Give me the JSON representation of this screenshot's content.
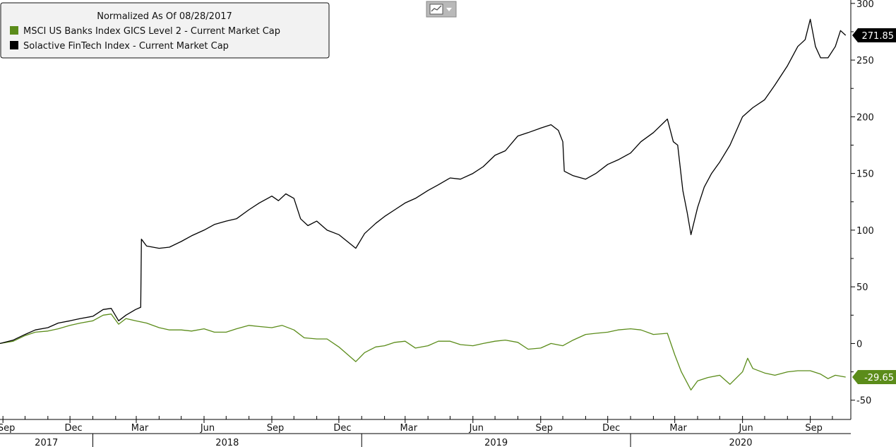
{
  "chart_data": {
    "type": "line",
    "legend_title": "Normalized As Of 08/28/2017",
    "legend_placement": "top-left",
    "y_axis_side": "right",
    "ylim": [
      -67,
      303
    ],
    "y_ticks": [
      -50,
      0,
      50,
      100,
      150,
      200,
      250,
      300
    ],
    "y_tick_labels": [
      "-50",
      "0",
      "50",
      "100",
      "150",
      "200",
      "250",
      "300"
    ],
    "x_range": [
      "2017-08-28",
      "2020-10-26"
    ],
    "x_tick_labels": [
      {
        "date": "2017-09-01",
        "label": "Sep"
      },
      {
        "date": "2017-12-01",
        "label": "Dec"
      },
      {
        "date": "2018-03-01",
        "label": "Mar"
      },
      {
        "date": "2018-06-01",
        "label": "Jun"
      },
      {
        "date": "2018-09-01",
        "label": "Sep"
      },
      {
        "date": "2018-12-01",
        "label": "Dec"
      },
      {
        "date": "2019-03-01",
        "label": "Mar"
      },
      {
        "date": "2019-06-01",
        "label": "Jun"
      },
      {
        "date": "2019-09-01",
        "label": "Sep"
      },
      {
        "date": "2019-12-01",
        "label": "Dec"
      },
      {
        "date": "2020-03-01",
        "label": "Mar"
      },
      {
        "date": "2020-06-01",
        "label": "Jun"
      },
      {
        "date": "2020-09-01",
        "label": "Sep"
      }
    ],
    "year_labels": [
      {
        "label": "2017",
        "from": "2017-08-28",
        "to": "2018-01-01"
      },
      {
        "label": "2018",
        "from": "2018-01-01",
        "to": "2019-01-01"
      },
      {
        "label": "2019",
        "from": "2019-01-01",
        "to": "2020-01-01"
      },
      {
        "label": "2020",
        "from": "2020-01-01",
        "to": "2020-10-26"
      }
    ],
    "series": [
      {
        "name": "Solactive FinTech Index - Current Market Cap",
        "color": "#000000",
        "last_value_label": "271.85",
        "points": [
          [
            "2017-08-28",
            0
          ],
          [
            "2017-09-15",
            3
          ],
          [
            "2017-10-01",
            8
          ],
          [
            "2017-10-15",
            12
          ],
          [
            "2017-11-01",
            14
          ],
          [
            "2017-11-15",
            18
          ],
          [
            "2017-12-01",
            20
          ],
          [
            "2017-12-15",
            22
          ],
          [
            "2018-01-01",
            24
          ],
          [
            "2018-01-15",
            30
          ],
          [
            "2018-01-26",
            31
          ],
          [
            "2018-02-05",
            20
          ],
          [
            "2018-02-15",
            25
          ],
          [
            "2018-02-28",
            30
          ],
          [
            "2018-03-07",
            32
          ],
          [
            "2018-03-08",
            92
          ],
          [
            "2018-03-15",
            86
          ],
          [
            "2018-04-01",
            84
          ],
          [
            "2018-04-15",
            85
          ],
          [
            "2018-05-01",
            90
          ],
          [
            "2018-05-15",
            95
          ],
          [
            "2018-06-01",
            100
          ],
          [
            "2018-06-15",
            105
          ],
          [
            "2018-07-01",
            108
          ],
          [
            "2018-07-15",
            110
          ],
          [
            "2018-08-01",
            118
          ],
          [
            "2018-08-15",
            124
          ],
          [
            "2018-09-01",
            130
          ],
          [
            "2018-09-10",
            126
          ],
          [
            "2018-09-20",
            132
          ],
          [
            "2018-10-01",
            128
          ],
          [
            "2018-10-10",
            110
          ],
          [
            "2018-10-20",
            104
          ],
          [
            "2018-11-01",
            108
          ],
          [
            "2018-11-15",
            100
          ],
          [
            "2018-12-01",
            96
          ],
          [
            "2018-12-24",
            84
          ],
          [
            "2019-01-05",
            97
          ],
          [
            "2019-01-20",
            106
          ],
          [
            "2019-02-01",
            112
          ],
          [
            "2019-02-15",
            118
          ],
          [
            "2019-03-01",
            124
          ],
          [
            "2019-03-15",
            128
          ],
          [
            "2019-04-01",
            135
          ],
          [
            "2019-04-15",
            140
          ],
          [
            "2019-05-01",
            146
          ],
          [
            "2019-05-15",
            145
          ],
          [
            "2019-06-01",
            150
          ],
          [
            "2019-06-15",
            156
          ],
          [
            "2019-07-01",
            166
          ],
          [
            "2019-07-15",
            170
          ],
          [
            "2019-08-01",
            183
          ],
          [
            "2019-08-15",
            186
          ],
          [
            "2019-09-01",
            190
          ],
          [
            "2019-09-15",
            193
          ],
          [
            "2019-09-25",
            188
          ],
          [
            "2019-10-01",
            178
          ],
          [
            "2019-10-03",
            152
          ],
          [
            "2019-10-15",
            148
          ],
          [
            "2019-11-01",
            145
          ],
          [
            "2019-11-15",
            150
          ],
          [
            "2019-12-01",
            158
          ],
          [
            "2019-12-15",
            162
          ],
          [
            "2020-01-01",
            168
          ],
          [
            "2020-01-15",
            178
          ],
          [
            "2020-02-01",
            186
          ],
          [
            "2020-02-20",
            198
          ],
          [
            "2020-02-28",
            178
          ],
          [
            "2020-03-05",
            175
          ],
          [
            "2020-03-12",
            135
          ],
          [
            "2020-03-18",
            115
          ],
          [
            "2020-03-23",
            96
          ],
          [
            "2020-04-01",
            120
          ],
          [
            "2020-04-10",
            138
          ],
          [
            "2020-04-20",
            150
          ],
          [
            "2020-05-01",
            160
          ],
          [
            "2020-05-15",
            175
          ],
          [
            "2020-06-01",
            200
          ],
          [
            "2020-06-15",
            208
          ],
          [
            "2020-07-01",
            215
          ],
          [
            "2020-07-15",
            228
          ],
          [
            "2020-08-01",
            245
          ],
          [
            "2020-08-15",
            262
          ],
          [
            "2020-08-25",
            268
          ],
          [
            "2020-09-01",
            286
          ],
          [
            "2020-09-08",
            262
          ],
          [
            "2020-09-15",
            252
          ],
          [
            "2020-09-25",
            252
          ],
          [
            "2020-10-05",
            262
          ],
          [
            "2020-10-12",
            276
          ],
          [
            "2020-10-19",
            271.85
          ]
        ]
      },
      {
        "name": "MSCI US Banks Index GICS Level 2 - Current Market Cap",
        "color": "#5b8c1a",
        "last_value_label": "-29.65",
        "points": [
          [
            "2017-08-28",
            0
          ],
          [
            "2017-09-15",
            2
          ],
          [
            "2017-10-01",
            7
          ],
          [
            "2017-10-15",
            10
          ],
          [
            "2017-11-01",
            11
          ],
          [
            "2017-11-15",
            13
          ],
          [
            "2017-12-01",
            16
          ],
          [
            "2017-12-15",
            18
          ],
          [
            "2018-01-01",
            20
          ],
          [
            "2018-01-15",
            25
          ],
          [
            "2018-01-26",
            26
          ],
          [
            "2018-02-05",
            17
          ],
          [
            "2018-02-15",
            22
          ],
          [
            "2018-02-28",
            20
          ],
          [
            "2018-03-15",
            18
          ],
          [
            "2018-04-01",
            14
          ],
          [
            "2018-04-15",
            12
          ],
          [
            "2018-05-01",
            12
          ],
          [
            "2018-05-15",
            11
          ],
          [
            "2018-06-01",
            13
          ],
          [
            "2018-06-15",
            10
          ],
          [
            "2018-07-01",
            10
          ],
          [
            "2018-07-15",
            13
          ],
          [
            "2018-08-01",
            16
          ],
          [
            "2018-08-15",
            15
          ],
          [
            "2018-09-01",
            14
          ],
          [
            "2018-09-15",
            16
          ],
          [
            "2018-10-01",
            12
          ],
          [
            "2018-10-15",
            5
          ],
          [
            "2018-11-01",
            4
          ],
          [
            "2018-11-15",
            4
          ],
          [
            "2018-12-01",
            -3
          ],
          [
            "2018-12-24",
            -16
          ],
          [
            "2019-01-05",
            -8
          ],
          [
            "2019-01-20",
            -3
          ],
          [
            "2019-02-01",
            -2
          ],
          [
            "2019-02-15",
            1
          ],
          [
            "2019-03-01",
            2
          ],
          [
            "2019-03-15",
            -4
          ],
          [
            "2019-04-01",
            -2
          ],
          [
            "2019-04-15",
            2
          ],
          [
            "2019-05-01",
            2
          ],
          [
            "2019-05-15",
            -1
          ],
          [
            "2019-06-01",
            -2
          ],
          [
            "2019-06-15",
            0
          ],
          [
            "2019-07-01",
            2
          ],
          [
            "2019-07-15",
            3
          ],
          [
            "2019-08-01",
            1
          ],
          [
            "2019-08-15",
            -5
          ],
          [
            "2019-09-01",
            -4
          ],
          [
            "2019-09-15",
            0
          ],
          [
            "2019-10-01",
            -2
          ],
          [
            "2019-10-15",
            3
          ],
          [
            "2019-11-01",
            8
          ],
          [
            "2019-11-15",
            9
          ],
          [
            "2019-12-01",
            10
          ],
          [
            "2019-12-15",
            12
          ],
          [
            "2020-01-01",
            13
          ],
          [
            "2020-01-15",
            12
          ],
          [
            "2020-02-01",
            8
          ],
          [
            "2020-02-20",
            9
          ],
          [
            "2020-03-01",
            -10
          ],
          [
            "2020-03-10",
            -25
          ],
          [
            "2020-03-23",
            -41
          ],
          [
            "2020-04-01",
            -33
          ],
          [
            "2020-04-15",
            -30
          ],
          [
            "2020-05-01",
            -28
          ],
          [
            "2020-05-15",
            -36
          ],
          [
            "2020-06-01",
            -25
          ],
          [
            "2020-06-08",
            -13
          ],
          [
            "2020-06-15",
            -22
          ],
          [
            "2020-07-01",
            -26
          ],
          [
            "2020-07-15",
            -28
          ],
          [
            "2020-08-01",
            -25
          ],
          [
            "2020-08-15",
            -24
          ],
          [
            "2020-09-01",
            -24
          ],
          [
            "2020-09-15",
            -27
          ],
          [
            "2020-09-25",
            -31
          ],
          [
            "2020-10-05",
            -28
          ],
          [
            "2020-10-19",
            -29.65
          ]
        ]
      }
    ]
  }
}
